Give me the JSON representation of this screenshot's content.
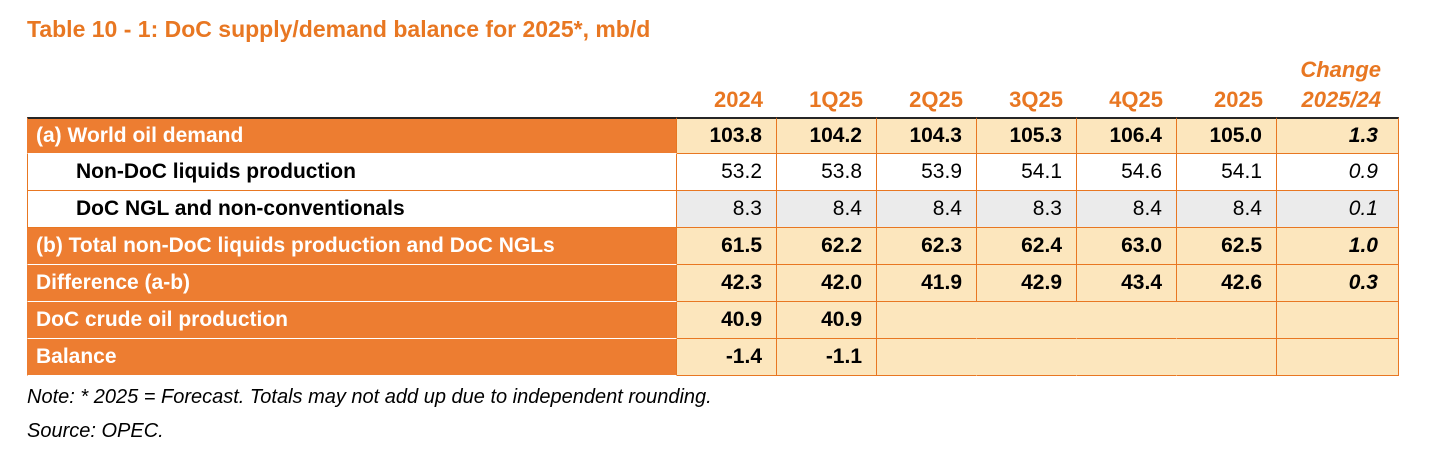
{
  "title": "Table 10 - 1: DoC supply/demand balance for 2025*, mb/d",
  "table": {
    "change_header": "Change",
    "columns": [
      "2024",
      "1Q25",
      "2Q25",
      "3Q25",
      "4Q25",
      "2025",
      "2025/24"
    ],
    "rows": [
      {
        "label": "(a) World oil demand",
        "values": [
          "103.8",
          "104.2",
          "104.3",
          "105.3",
          "106.4",
          "105.0"
        ],
        "change": "1.3"
      },
      {
        "label": "Non-DoC liquids production",
        "values": [
          "53.2",
          "53.8",
          "53.9",
          "54.1",
          "54.6",
          "54.1"
        ],
        "change": "0.9"
      },
      {
        "label": "DoC NGL and non-conventionals",
        "values": [
          "8.3",
          "8.4",
          "8.4",
          "8.3",
          "8.4",
          "8.4"
        ],
        "change": "0.1"
      },
      {
        "label": "(b) Total non-DoC liquids production and DoC NGLs",
        "values": [
          "61.5",
          "62.2",
          "62.3",
          "62.4",
          "63.0",
          "62.5"
        ],
        "change": "1.0"
      },
      {
        "label": "Difference (a-b)",
        "values": [
          "42.3",
          "42.0",
          "41.9",
          "42.9",
          "43.4",
          "42.6"
        ],
        "change": "0.3"
      },
      {
        "label": "DoC crude oil production",
        "values": [
          "40.9",
          "40.9",
          "",
          "",
          "",
          ""
        ],
        "change": ""
      },
      {
        "label": "Balance",
        "values": [
          "-1.4",
          "-1.1",
          "",
          "",
          "",
          ""
        ],
        "change": ""
      }
    ]
  },
  "footer": {
    "note": "Note: * 2025 = Forecast. Totals may not add up due to independent rounding.",
    "source": "Source: OPEC."
  },
  "colors": {
    "accent_text_orange": "#E87722",
    "row_fill_orange": "#ED7D31",
    "value_fill_cream": "#FCE6BD",
    "row_fill_gray": "#EBEBEB",
    "top_rule": "#262626"
  }
}
